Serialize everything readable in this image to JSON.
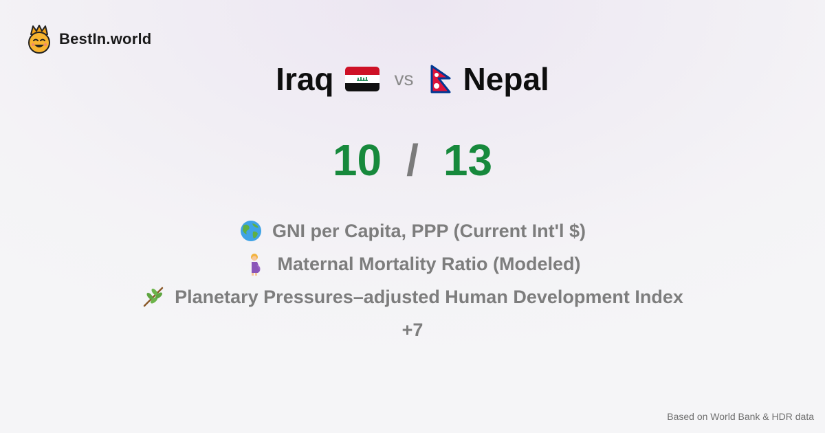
{
  "brand": {
    "name": "BestIn.world",
    "icon": "crown-smiley-logo"
  },
  "comparison": {
    "left_country": "Iraq",
    "left_flag": "iraq-flag",
    "vs_label": "vs",
    "right_country": "Nepal",
    "right_flag": "nepal-flag"
  },
  "score": {
    "left": "10",
    "separator": "/",
    "right": "13"
  },
  "metrics": [
    {
      "icon": "globe-icon",
      "label": "GNI per Capita, PPP (Current Int'l $)"
    },
    {
      "icon": "pregnant-woman-icon",
      "label": "Maternal Mortality Ratio (Modeled)"
    },
    {
      "icon": "herb-branch-icon",
      "label": "Planetary Pressures–adjusted Human Development Index"
    }
  ],
  "more_label": "+7",
  "footer": {
    "source": "Based on World Bank & HDR data"
  },
  "colors": {
    "score_green": "#17893c",
    "muted_text": "#7d7d7d"
  }
}
